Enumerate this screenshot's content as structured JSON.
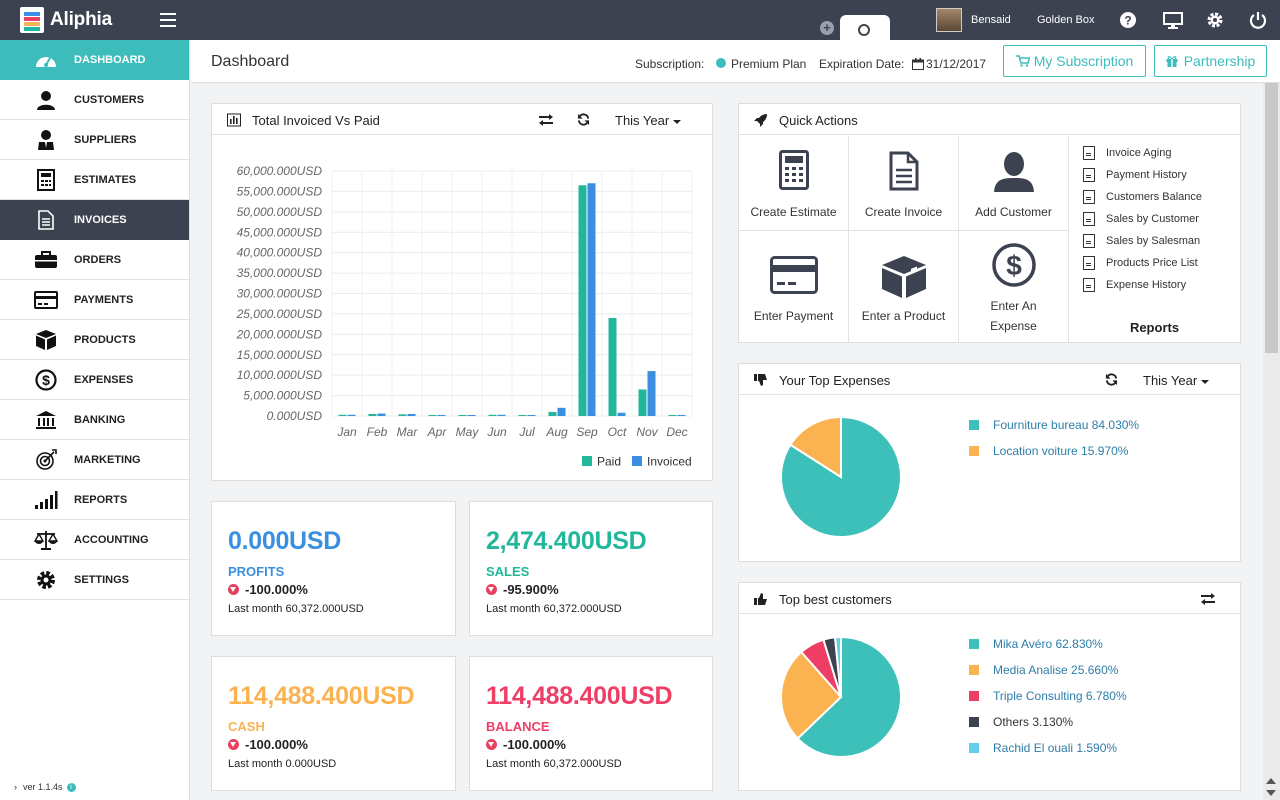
{
  "app": {
    "title": "Aliphia",
    "version": "ver 1.1.4s"
  },
  "topbar": {
    "user_name": "Bensaid",
    "company": "Golden Box"
  },
  "sidebar": {
    "items": [
      {
        "label": "DASHBOARD",
        "icon": "dashboard-icon"
      },
      {
        "label": "CUSTOMERS",
        "icon": "user-icon"
      },
      {
        "label": "SUPPLIERS",
        "icon": "supplier-icon"
      },
      {
        "label": "ESTIMATES",
        "icon": "calculator-icon"
      },
      {
        "label": "INVOICES",
        "icon": "document-icon"
      },
      {
        "label": "ORDERS",
        "icon": "briefcase-icon"
      },
      {
        "label": "PAYMENTS",
        "icon": "credit-card-icon"
      },
      {
        "label": "PRODUCTS",
        "icon": "box-icon"
      },
      {
        "label": "EXPENSES",
        "icon": "dollar-circle-icon"
      },
      {
        "label": "BANKING",
        "icon": "bank-icon"
      },
      {
        "label": "MARKETING",
        "icon": "target-icon"
      },
      {
        "label": "REPORTS",
        "icon": "bar-signal-icon"
      },
      {
        "label": "ACCOUNTING",
        "icon": "scale-icon"
      },
      {
        "label": "SETTINGS",
        "icon": "gear-icon"
      }
    ]
  },
  "header": {
    "title": "Dashboard",
    "subscription_label": "Subscription:",
    "subscription_plan": "Premium Plan",
    "expiration_label": "Expiration Date:",
    "expiration_date": "31/12/2017",
    "my_subscription_button": "My Subscription",
    "partnership_button": "Partnership"
  },
  "invoiced_panel": {
    "title": "Total Invoiced Vs Paid",
    "period": "This Year"
  },
  "chart_data": [
    {
      "type": "bar",
      "categories": [
        "Jan",
        "Feb",
        "Mar",
        "Apr",
        "May",
        "Jun",
        "Jul",
        "Aug",
        "Sep",
        "Oct",
        "Nov",
        "Dec"
      ],
      "series": [
        {
          "name": "Paid",
          "color": "#21b79a",
          "values": [
            300,
            500,
            400,
            200,
            200,
            300,
            0,
            1000,
            56500,
            24000,
            6500,
            0
          ]
        },
        {
          "name": "Invoiced",
          "color": "#3a8fe0",
          "values": [
            300,
            600,
            500,
            200,
            200,
            300,
            0,
            2000,
            57000,
            800,
            11000,
            200
          ]
        }
      ],
      "yticks": [
        "0.000USD",
        "5,000.000USD",
        "10,000.000USD",
        "15,000.000USD",
        "20,000.000USD",
        "25,000.000USD",
        "30,000.000USD",
        "35,000.000USD",
        "40,000.000USD",
        "45,000.000USD",
        "50,000.000USD",
        "55,000.000USD",
        "60,000.000USD"
      ],
      "ylim": [
        0,
        60000
      ],
      "grid": true,
      "legend": "bottom-right"
    },
    {
      "type": "pie",
      "labels": [
        "Fourniture bureau 84.030%",
        "Location voiture 15.970%"
      ],
      "values": [
        84.03,
        15.97
      ],
      "colors": [
        "#3dbfba",
        "#fbb352"
      ],
      "legend": "right"
    },
    {
      "type": "pie",
      "labels": [
        "Mika Avéro 62.830%",
        "Media Analise 25.660%",
        "Triple Consulting 6.780%",
        "Others 3.130%",
        "Rachid El ouali 1.590%"
      ],
      "values": [
        62.83,
        25.66,
        6.78,
        3.13,
        1.59
      ],
      "colors": [
        "#3dbfba",
        "#fbb352",
        "#ef3e66",
        "#3c4250",
        "#66cfe8"
      ],
      "legend": "right"
    }
  ],
  "stats": [
    {
      "value": "0.000USD",
      "label": "PROFITS",
      "change": "-100.000%",
      "last": "Last month 60,372.000USD",
      "color": "#3a8fe0"
    },
    {
      "value": "2,474.400USD",
      "label": "SALES",
      "change": "-95.900%",
      "last": "Last month 60,372.000USD",
      "color": "#21b79a"
    },
    {
      "value": "114,488.400USD",
      "label": "CASH",
      "change": "-100.000%",
      "last": "Last month 0.000USD",
      "color": "#fbb352"
    },
    {
      "value": "114,488.400USD",
      "label": "BALANCE",
      "change": "-100.000%",
      "last": "Last month 60,372.000USD",
      "color": "#ef3e66"
    }
  ],
  "quick_actions": {
    "title": "Quick Actions",
    "actions": [
      "Create Estimate",
      "Create Invoice",
      "Add Customer",
      "Enter Payment",
      "Enter a Product",
      "Enter An Expense"
    ],
    "reports_title": "Reports",
    "reports": [
      "Invoice Aging",
      "Payment History",
      "Customers Balance",
      "Sales by Customer",
      "Sales by Salesman",
      "Products Price List",
      "Expense History"
    ]
  },
  "expenses_panel": {
    "title": "Your Top Expenses",
    "period": "This Year"
  },
  "customers_panel": {
    "title": "Top best customers"
  }
}
